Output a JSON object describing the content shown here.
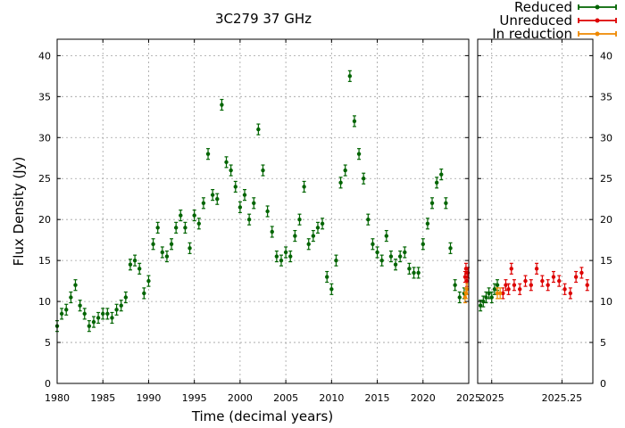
{
  "chart_data": {
    "type": "scatter",
    "title": "3C279 37 GHz",
    "xlabel": "Time (decimal years)",
    "ylabel": "Flux Density (Jy)",
    "ylim": [
      0,
      42
    ],
    "grid": true,
    "legend_position": "top-right",
    "colors": {
      "reduced": "#006400",
      "unreduced": "#dd0000",
      "in_reduction": "#ee8800"
    },
    "panels": [
      {
        "name": "main",
        "xlim": [
          1980,
          2025
        ],
        "x_ticks": [
          1980,
          1985,
          1990,
          1995,
          2000,
          2005,
          2010,
          2015,
          2020,
          2025
        ],
        "x_tick_labels": [
          "1980",
          "1985",
          "1990",
          "1995",
          "2000",
          "2005",
          "2010",
          "2015",
          "2020",
          "2025"
        ],
        "y_ticks": [
          0,
          5,
          10,
          15,
          20,
          25,
          30,
          35,
          40
        ],
        "y_tick_labels": [
          "0",
          "5",
          "10",
          "15",
          "20",
          "25",
          "30",
          "35",
          "40"
        ]
      },
      {
        "name": "zoom",
        "xlim": [
          2024.95,
          2025.36
        ],
        "x_ticks": [
          2025,
          2025.25
        ],
        "x_tick_labels": [
          "2025",
          "2025.25"
        ],
        "y_ticks": [
          0,
          5,
          10,
          15,
          20,
          25,
          30,
          35,
          40
        ],
        "y_tick_labels": [
          "0",
          "5",
          "10",
          "15",
          "20",
          "25",
          "30",
          "35",
          "40"
        ]
      }
    ],
    "series": [
      {
        "name": "Reduced",
        "color_key": "reduced",
        "panel": "main",
        "x": [
          1980.0,
          1980.5,
          1981.0,
          1981.5,
          1982.0,
          1982.5,
          1983.0,
          1983.5,
          1984.0,
          1984.5,
          1985.0,
          1985.5,
          1986.0,
          1986.5,
          1987.0,
          1987.5,
          1988.0,
          1988.5,
          1989.0,
          1989.5,
          1990.0,
          1990.5,
          1991.0,
          1991.5,
          1992.0,
          1992.5,
          1993.0,
          1993.5,
          1994.0,
          1994.5,
          1995.0,
          1995.5,
          1996.0,
          1996.5,
          1997.0,
          1997.5,
          1998.0,
          1998.5,
          1999.0,
          1999.5,
          2000.0,
          2000.5,
          2001.0,
          2001.5,
          2002.0,
          2002.5,
          2003.0,
          2003.5,
          2004.0,
          2004.5,
          2005.0,
          2005.5,
          2006.0,
          2006.5,
          2007.0,
          2007.5,
          2008.0,
          2008.5,
          2009.0,
          2009.5,
          2010.0,
          2010.5,
          2011.0,
          2011.5,
          2012.0,
          2012.5,
          2013.0,
          2013.5,
          2014.0,
          2014.5,
          2015.0,
          2015.5,
          2016.0,
          2016.5,
          2017.0,
          2017.5,
          2018.0,
          2018.5,
          2019.0,
          2019.5,
          2020.0,
          2020.5,
          2021.0,
          2021.5,
          2022.0,
          2022.5,
          2023.0,
          2023.5,
          2024.0,
          2024.5
        ],
        "y": [
          7.0,
          8.5,
          9.0,
          10.5,
          12.0,
          9.5,
          8.5,
          7.0,
          7.5,
          8.0,
          8.5,
          8.5,
          8.0,
          9.0,
          9.5,
          10.5,
          14.5,
          15.0,
          14.0,
          11.0,
          12.5,
          17.0,
          19.0,
          16.0,
          15.5,
          17.0,
          19.0,
          20.5,
          19.0,
          16.5,
          20.5,
          19.5,
          22.0,
          28.0,
          23.0,
          22.5,
          34.0,
          27.0,
          26.0,
          24.0,
          21.5,
          23.0,
          20.0,
          22.0,
          31.0,
          26.0,
          21.0,
          18.5,
          15.5,
          15.0,
          16.0,
          15.5,
          18.0,
          20.0,
          24.0,
          17.0,
          18.0,
          19.0,
          19.5,
          13.0,
          11.5,
          15.0,
          24.5,
          26.0,
          37.5,
          32.0,
          28.0,
          25.0,
          20.0,
          17.0,
          16.0,
          15.0,
          18.0,
          15.5,
          14.5,
          15.5,
          16.0,
          14.0,
          13.5,
          13.5,
          17.0,
          19.5,
          22.0,
          24.5,
          25.5,
          22.0,
          16.5,
          12.0,
          10.5,
          11.0
        ]
      },
      {
        "name": "Reduced",
        "color_key": "reduced",
        "panel": "zoom",
        "x": [
          2024.96,
          2024.97,
          2024.98,
          2024.99,
          2025.0,
          2025.01,
          2025.02
        ],
        "y": [
          9.5,
          10.0,
          10.5,
          11.0,
          10.5,
          11.5,
          12.0
        ]
      },
      {
        "name": "Unreduced",
        "color_key": "unreduced",
        "panel": "main",
        "x": [
          2024.6,
          2024.7,
          2024.8,
          2024.9
        ],
        "y": [
          13.0,
          14.0,
          12.5,
          13.5
        ]
      },
      {
        "name": "Unreduced",
        "color_key": "unreduced",
        "panel": "zoom",
        "x": [
          2025.04,
          2025.05,
          2025.06,
          2025.07,
          2025.08,
          2025.1,
          2025.12,
          2025.14,
          2025.16,
          2025.18,
          2025.2,
          2025.22,
          2025.24,
          2025.26,
          2025.28,
          2025.3,
          2025.32,
          2025.34
        ],
        "y": [
          11.0,
          12.0,
          11.5,
          14.0,
          12.0,
          11.5,
          12.5,
          12.0,
          14.0,
          12.5,
          12.0,
          13.0,
          12.5,
          11.5,
          11.0,
          13.0,
          13.5,
          12.0
        ]
      },
      {
        "name": "In reduction",
        "color_key": "in_reduction",
        "panel": "main",
        "x": [
          2024.6,
          2024.7,
          2024.8
        ],
        "y": [
          10.5,
          11.0,
          11.5
        ]
      },
      {
        "name": "In reduction",
        "color_key": "in_reduction",
        "panel": "zoom",
        "x": [
          2025.02,
          2025.03
        ],
        "y": [
          11.0,
          11.0
        ]
      }
    ],
    "legend": [
      {
        "label": "Reduced",
        "color_key": "reduced"
      },
      {
        "label": "Unreduced",
        "color_key": "unreduced"
      },
      {
        "label": "In reduction",
        "color_key": "in_reduction"
      }
    ]
  }
}
